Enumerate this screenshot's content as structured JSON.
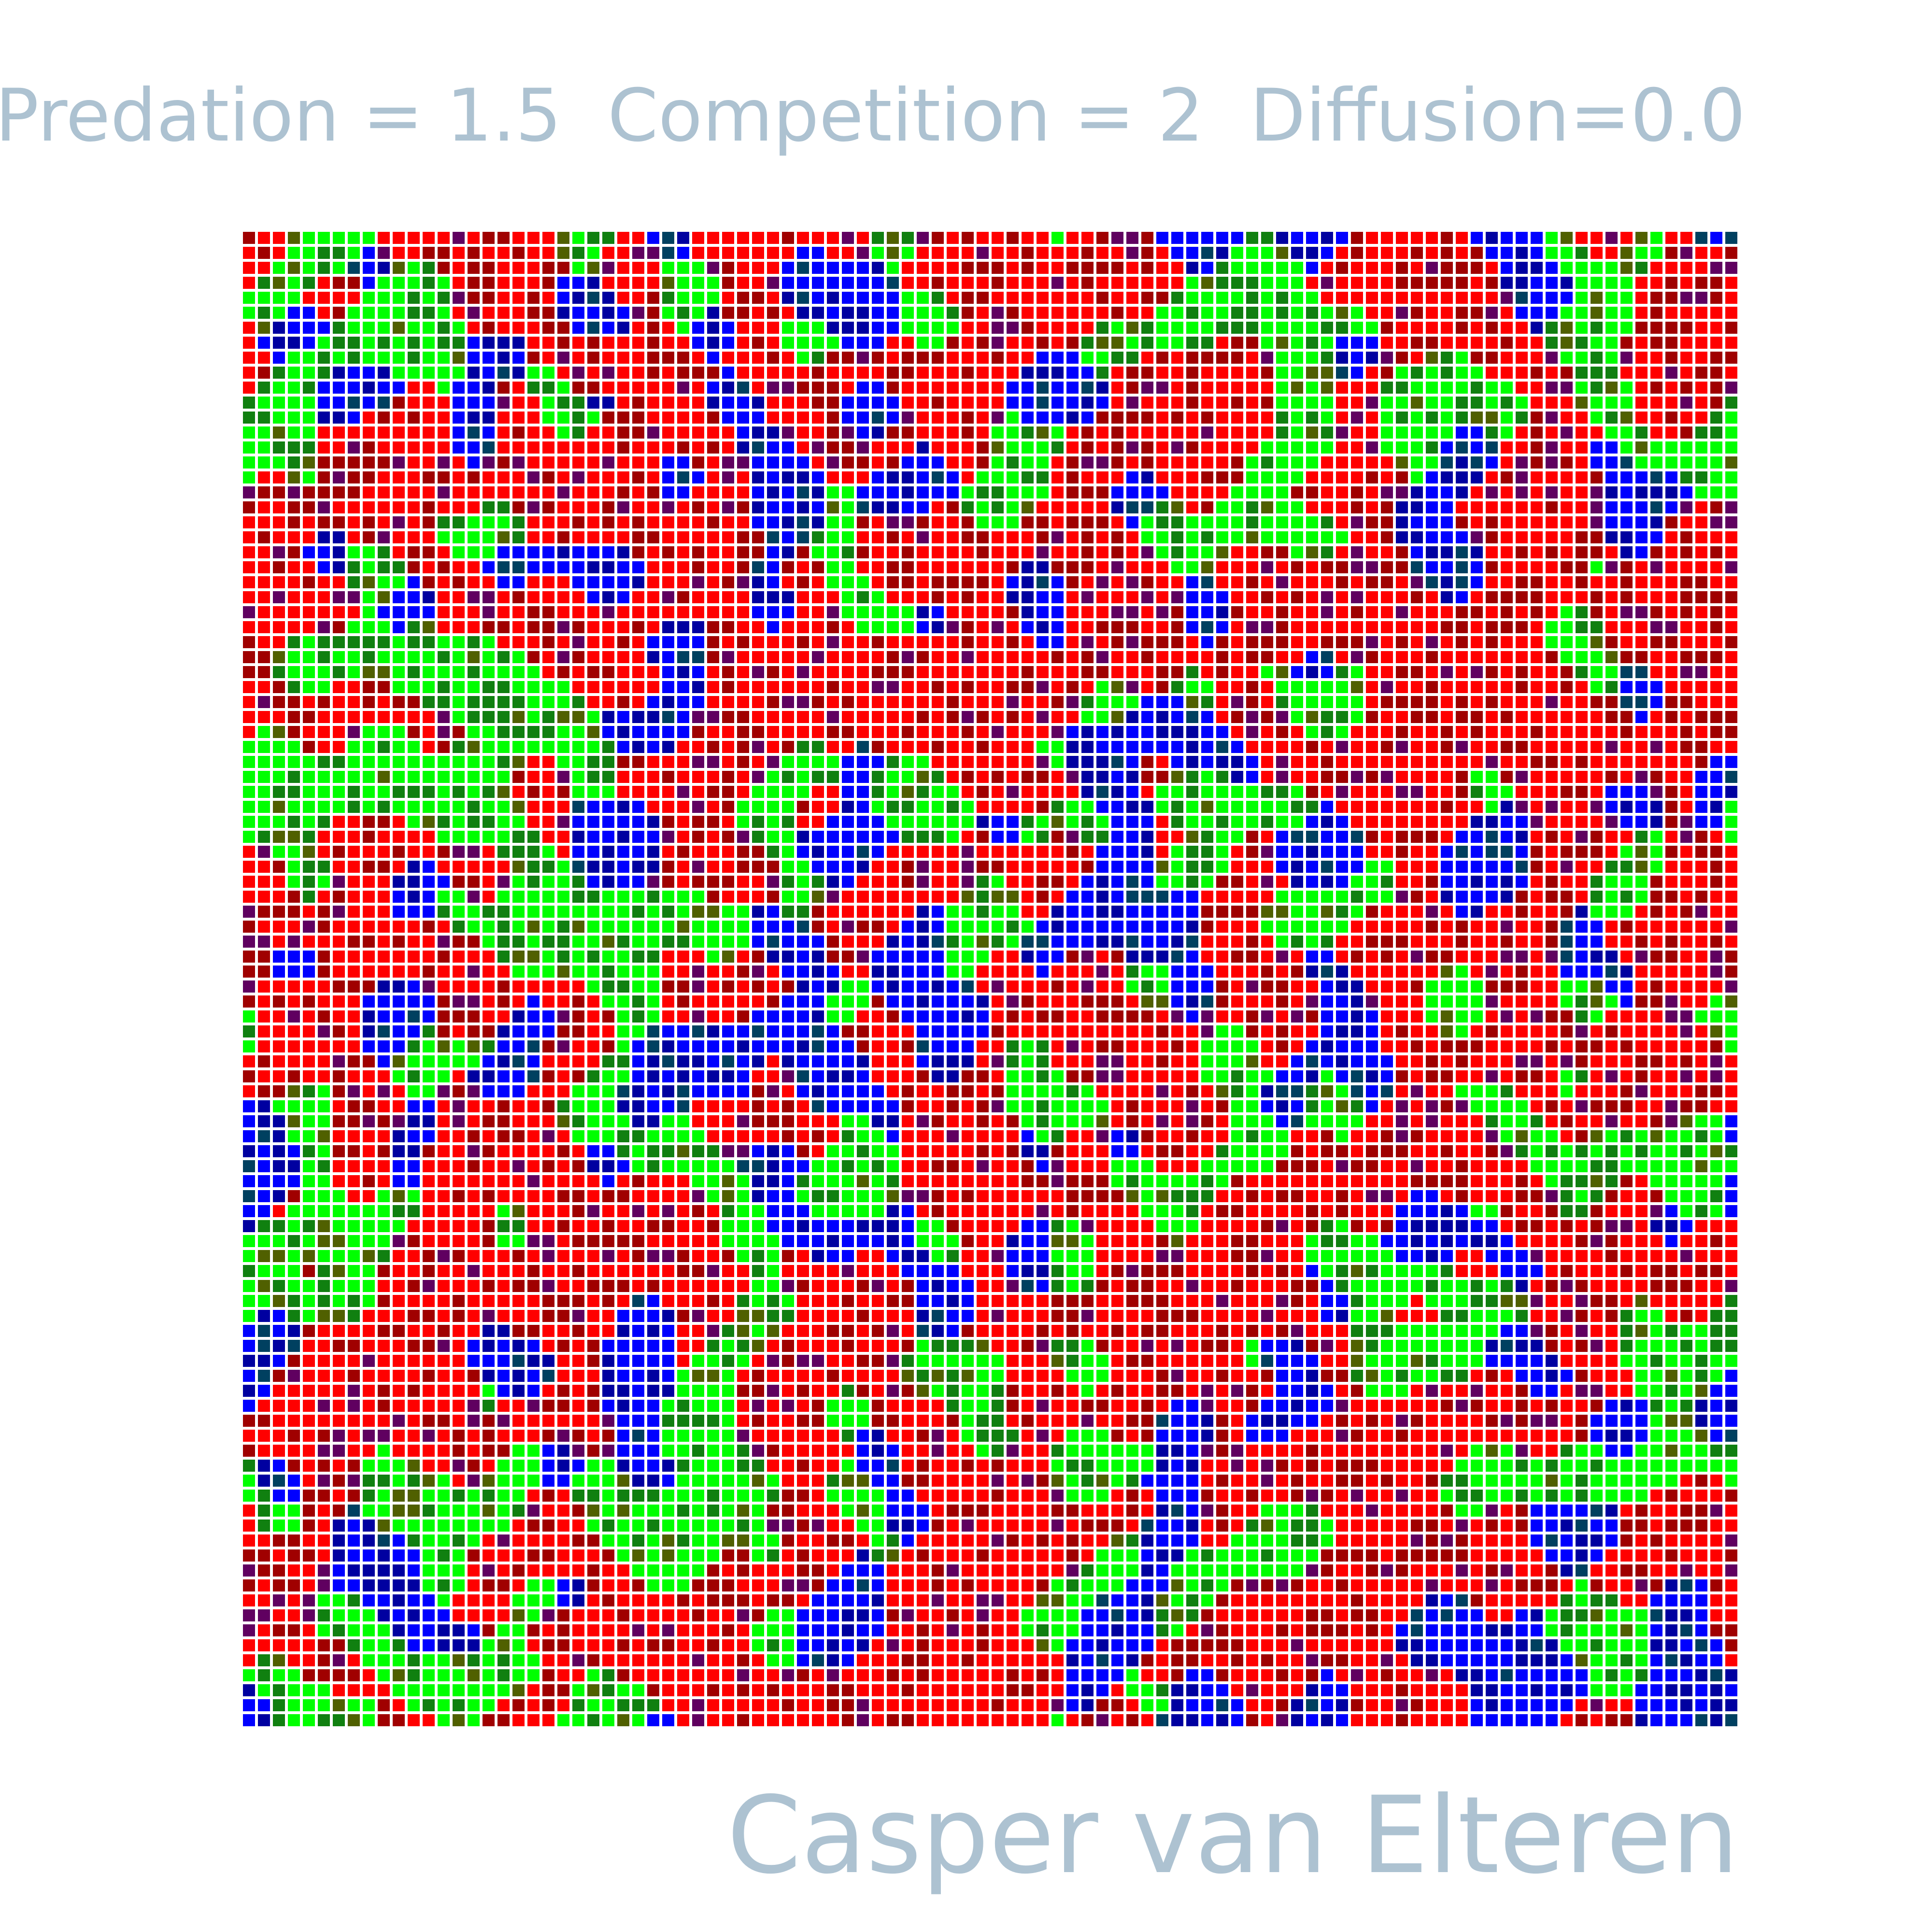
{
  "header": {
    "title": "Predation = 1.5  Competition = 2  Diffusion=0.0"
  },
  "footer": {
    "signature": "Casper van Elteren"
  },
  "lattice": {
    "rows": 100,
    "cols": 100,
    "species_colors": {
      "red": "#ff0000",
      "green": "#00ff00",
      "blue": "#0000ff"
    },
    "secondary_colors": {
      "dark_red": "#a00000",
      "dark_green": "#108010",
      "dark_blue": "#0000a0",
      "purple": "#600060",
      "olive": "#506000",
      "teal": "#004060"
    }
  },
  "colors": {
    "text": "#adc2d1",
    "background": "#ffffff"
  }
}
